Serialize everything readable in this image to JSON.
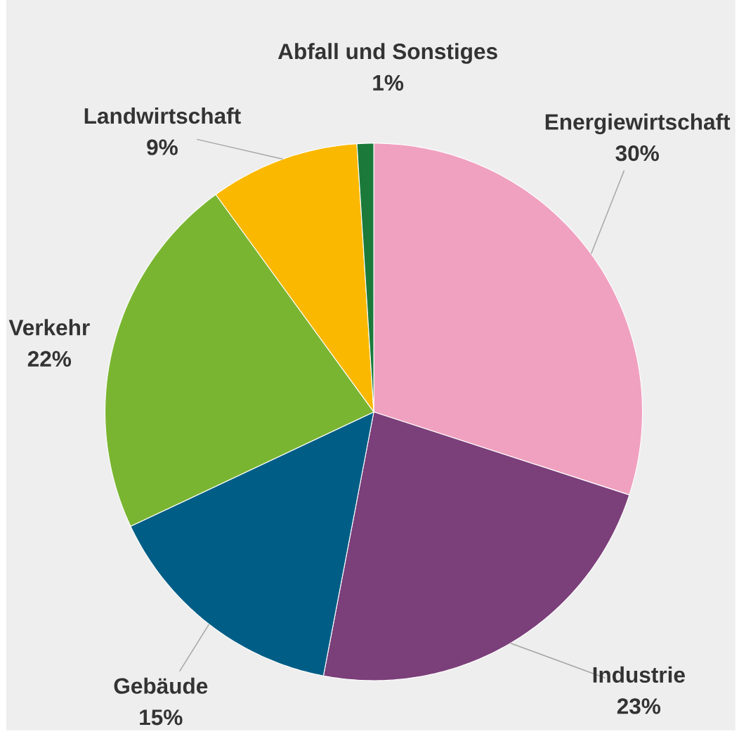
{
  "chart_data": {
    "type": "pie",
    "categories": [
      "Energiewirtschaft",
      "Industrie",
      "Gebäude",
      "Verkehr",
      "Landwirtschaft",
      "Abfall und Sonstiges"
    ],
    "values": [
      30,
      23,
      15,
      22,
      9,
      1
    ],
    "value_labels": [
      "30%",
      "23%",
      "15%",
      "22%",
      "9%",
      "1%"
    ],
    "colors": [
      "#f0a1c0",
      "#7b3f7a",
      "#005e86",
      "#7ab532",
      "#fbb800",
      "#1b7a3a"
    ]
  }
}
